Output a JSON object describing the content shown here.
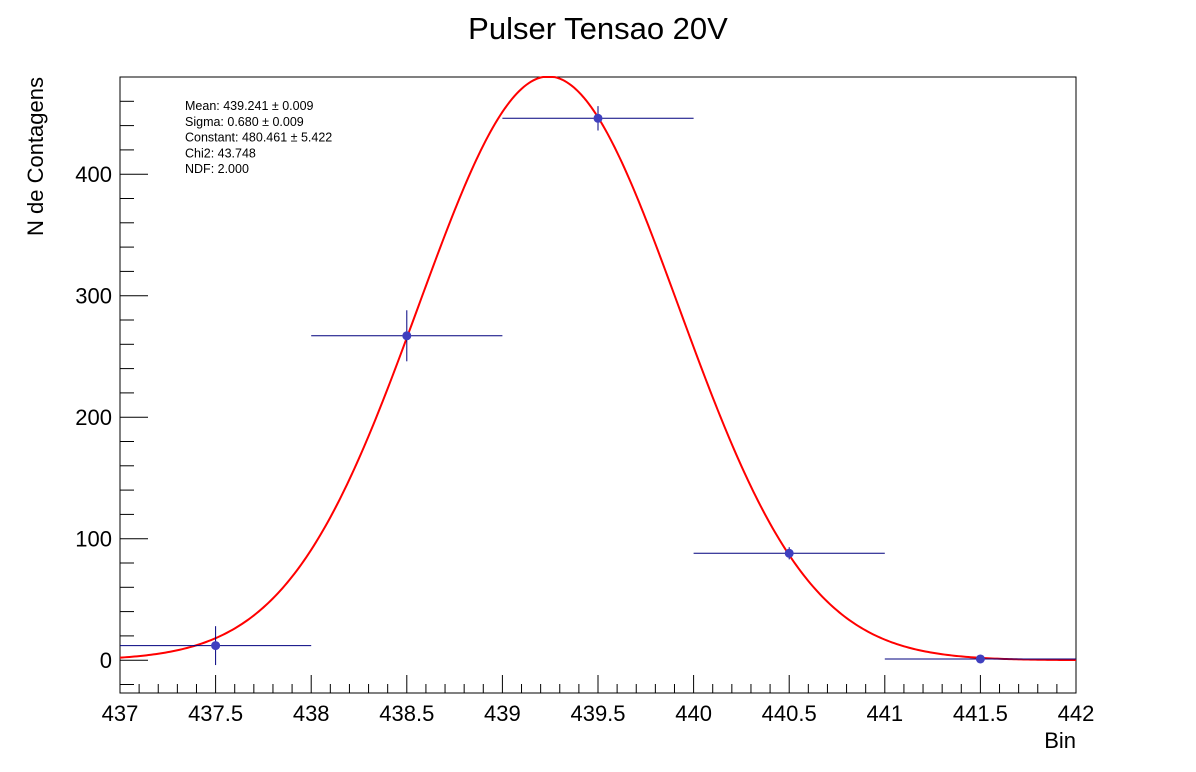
{
  "chart_data": {
    "type": "scatter",
    "title": "Pulser Tensao 20V",
    "xlabel": "Bin",
    "ylabel": "N de Contagens",
    "xlim": [
      437,
      442
    ],
    "ylim": [
      -27,
      480
    ],
    "x_ticks": [
      "437",
      "437.5",
      "438",
      "438.5",
      "439",
      "439.5",
      "440",
      "440.5",
      "441",
      "441.5",
      "442"
    ],
    "y_ticks": [
      "0",
      "100",
      "200",
      "300",
      "400"
    ],
    "grid": false,
    "series": [
      {
        "points": [
          {
            "x": 437.5,
            "y": 12,
            "x_err": 0.5,
            "y_err": 16
          },
          {
            "x": 438.5,
            "y": 267,
            "x_err": 0.5,
            "y_err": 21
          },
          {
            "x": 439.5,
            "y": 446,
            "x_err": 0.5,
            "y_err": 10
          },
          {
            "x": 440.5,
            "y": 88,
            "x_err": 0.5,
            "y_err": 5
          },
          {
            "x": 441.5,
            "y": 1,
            "x_err": 0.5,
            "y_err": 1
          }
        ],
        "color": "#00007f",
        "marker_color": "#3f3fbf"
      }
    ],
    "fit": {
      "function": "gaussian",
      "mean": 439.241,
      "sigma": 0.68,
      "constant": 480.461,
      "color": "#ff0000"
    },
    "stats": [
      "Mean: 439.241 ± 0.009",
      "Sigma: 0.680 ± 0.009",
      "Constant: 480.461 ± 5.422",
      "Chi2: 43.748",
      "NDF: 2.000"
    ]
  }
}
